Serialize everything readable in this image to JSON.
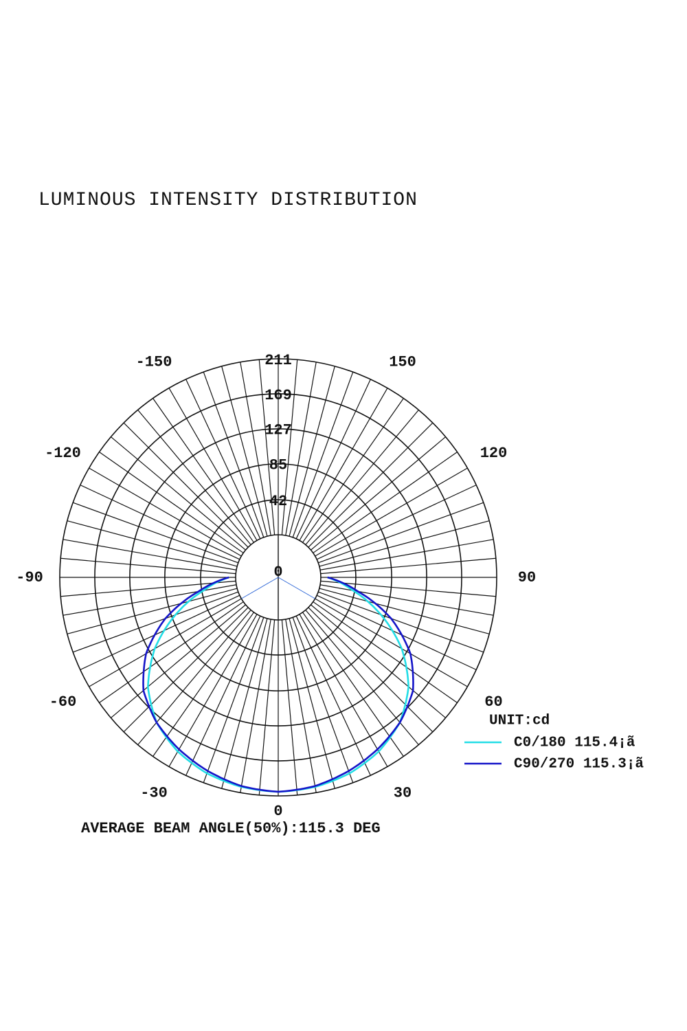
{
  "title": "LUMINOUS INTENSITY DISTRIBUTION",
  "chart_data": {
    "type": "polar",
    "title": "LUMINOUS INTENSITY DISTRIBUTION",
    "radial_ticks": [
      "0",
      "42",
      "85",
      "127",
      "169",
      "211"
    ],
    "radial_values": [
      0,
      42,
      85,
      127,
      169,
      211
    ],
    "r_max": 211,
    "angle_ticks": [
      {
        "label": "0",
        "angle": 0
      },
      {
        "label": "30",
        "angle": 30
      },
      {
        "label": "60",
        "angle": 60
      },
      {
        "label": "90",
        "angle": 90
      },
      {
        "label": "120",
        "angle": 120
      },
      {
        "label": "150",
        "angle": 150
      },
      {
        "label": "-30",
        "angle": -30
      },
      {
        "label": "-60",
        "angle": -60
      },
      {
        "label": "-90",
        "angle": -90
      },
      {
        "label": "-120",
        "angle": -120
      },
      {
        "label": "-150",
        "angle": -150
      }
    ],
    "unit_label": "UNIT:cd",
    "footer": "AVERAGE BEAM ANGLE(50%):115.3 DEG",
    "legend_position": "right",
    "grid": true,
    "series": [
      {
        "name": "C0/180 115.4¡ã",
        "color": "#22dde6",
        "angles": [
          0,
          10,
          20,
          30,
          40,
          50,
          60,
          70,
          80,
          90
        ],
        "values": [
          206,
          204,
          199,
          190,
          176,
          153,
          120,
          80,
          40,
          8
        ]
      },
      {
        "name": "C90/270 115.3¡ã",
        "color": "#1414c8",
        "angles": [
          0,
          10,
          20,
          30,
          40,
          50,
          60,
          70,
          80,
          90
        ],
        "values": [
          206,
          203,
          196,
          187,
          176,
          160,
          132,
          93,
          46,
          8
        ]
      }
    ]
  }
}
